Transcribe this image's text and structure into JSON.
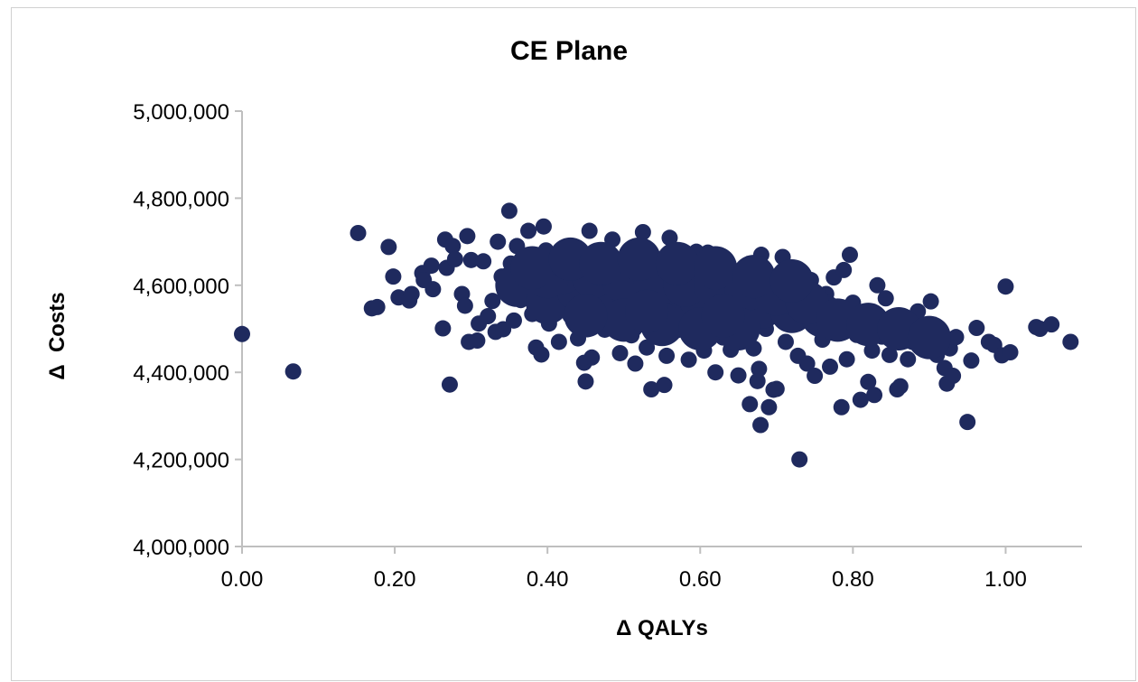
{
  "colors": {
    "marker": "#1f2a5e",
    "axis": "#bfbfbf",
    "frame": "#d0d0d0"
  },
  "chart_data": {
    "type": "scatter",
    "title": "CE Plane",
    "xlabel": "Δ QALYs",
    "ylabel": "Δ  Costs",
    "xlim": [
      0,
      1.1
    ],
    "ylim": [
      4000000,
      5000000
    ],
    "xticks": [
      "0.00",
      "0.20",
      "0.40",
      "0.60",
      "0.80",
      "1.00"
    ],
    "yticks": [
      "4,000,000",
      "4,200,000",
      "4,400,000",
      "4,600,000",
      "4,800,000",
      "5,000,000"
    ],
    "xtick_values": [
      0,
      0.2,
      0.4,
      0.6,
      0.8,
      1.0
    ],
    "ytick_values": [
      4000000,
      4200000,
      4400000,
      4600000,
      4800000,
      5000000
    ],
    "grid": false,
    "legend": "none",
    "series": [
      {
        "points": [
          [
            0.0,
            4488000
          ],
          [
            0.067,
            4402000
          ],
          [
            0.152,
            4720000
          ],
          [
            0.17,
            4547000
          ],
          [
            0.177,
            4550000
          ],
          [
            0.192,
            4688000
          ],
          [
            0.198,
            4620000
          ],
          [
            0.205,
            4572000
          ],
          [
            0.219,
            4565000
          ],
          [
            0.222,
            4580000
          ],
          [
            0.236,
            4628000
          ],
          [
            0.238,
            4612000
          ],
          [
            0.248,
            4645000
          ],
          [
            0.25,
            4591000
          ],
          [
            0.263,
            4501000
          ],
          [
            0.266,
            4705000
          ],
          [
            0.268,
            4640000
          ],
          [
            0.272,
            4372000
          ],
          [
            0.276,
            4690000
          ],
          [
            0.279,
            4660000
          ],
          [
            0.288,
            4580000
          ],
          [
            0.292,
            4553000
          ],
          [
            0.295,
            4713000
          ],
          [
            0.297,
            4470000
          ],
          [
            0.3,
            4658000
          ],
          [
            0.308,
            4473000
          ],
          [
            0.31,
            4512000
          ],
          [
            0.316,
            4655000
          ],
          [
            0.322,
            4529000
          ],
          [
            0.328,
            4564000
          ],
          [
            0.332,
            4493000
          ],
          [
            0.335,
            4700000
          ],
          [
            0.34,
            4620000
          ],
          [
            0.342,
            4499000
          ],
          [
            0.345,
            4587000
          ],
          [
            0.35,
            4771000
          ],
          [
            0.352,
            4650000
          ],
          [
            0.356,
            4519000
          ],
          [
            0.36,
            4690000
          ],
          [
            0.365,
            4566000
          ],
          [
            0.37,
            4610000
          ],
          [
            0.375,
            4725000
          ],
          [
            0.38,
            4534000
          ],
          [
            0.385,
            4457000
          ],
          [
            0.388,
            4595000
          ],
          [
            0.392,
            4441000
          ],
          [
            0.395,
            4735000
          ],
          [
            0.398,
            4680000
          ],
          [
            0.402,
            4512000
          ],
          [
            0.408,
            4625000
          ],
          [
            0.412,
            4555000
          ],
          [
            0.415,
            4470000
          ],
          [
            0.42,
            4663000
          ],
          [
            0.425,
            4592000
          ],
          [
            0.43,
            4530000
          ],
          [
            0.435,
            4682000
          ],
          [
            0.44,
            4478000
          ],
          [
            0.445,
            4540000
          ],
          [
            0.448,
            4422000
          ],
          [
            0.45,
            4379000
          ],
          [
            0.455,
            4725000
          ],
          [
            0.458,
            4434000
          ],
          [
            0.462,
            4600000
          ],
          [
            0.465,
            4552000
          ],
          [
            0.47,
            4640000
          ],
          [
            0.475,
            4498000
          ],
          [
            0.48,
            4575000
          ],
          [
            0.485,
            4705000
          ],
          [
            0.49,
            4520000
          ],
          [
            0.495,
            4444000
          ],
          [
            0.5,
            4610000
          ],
          [
            0.505,
            4562000
          ],
          [
            0.51,
            4485000
          ],
          [
            0.515,
            4420000
          ],
          [
            0.52,
            4644000
          ],
          [
            0.525,
            4722000
          ],
          [
            0.53,
            4457000
          ],
          [
            0.533,
            4600000
          ],
          [
            0.536,
            4361000
          ],
          [
            0.54,
            4530000
          ],
          [
            0.545,
            4590000
          ],
          [
            0.55,
            4479000
          ],
          [
            0.553,
            4371000
          ],
          [
            0.556,
            4438000
          ],
          [
            0.56,
            4709000
          ],
          [
            0.563,
            4640000
          ],
          [
            0.566,
            4555000
          ],
          [
            0.57,
            4497000
          ],
          [
            0.575,
            4618000
          ],
          [
            0.58,
            4525000
          ],
          [
            0.585,
            4429000
          ],
          [
            0.59,
            4580000
          ],
          [
            0.595,
            4677000
          ],
          [
            0.6,
            4519000
          ],
          [
            0.605,
            4450000
          ],
          [
            0.61,
            4675000
          ],
          [
            0.615,
            4592000
          ],
          [
            0.62,
            4400000
          ],
          [
            0.625,
            4545000
          ],
          [
            0.63,
            4480000
          ],
          [
            0.635,
            4620000
          ],
          [
            0.64,
            4452000
          ],
          [
            0.645,
            4570000
          ],
          [
            0.65,
            4393000
          ],
          [
            0.655,
            4510000
          ],
          [
            0.66,
            4640000
          ],
          [
            0.665,
            4327000
          ],
          [
            0.67,
            4455000
          ],
          [
            0.675,
            4380000
          ],
          [
            0.677,
            4408000
          ],
          [
            0.679,
            4279000
          ],
          [
            0.68,
            4670000
          ],
          [
            0.683,
            4560000
          ],
          [
            0.686,
            4500000
          ],
          [
            0.69,
            4320000
          ],
          [
            0.693,
            4615000
          ],
          [
            0.696,
            4360000
          ],
          [
            0.7,
            4362000
          ],
          [
            0.704,
            4540000
          ],
          [
            0.708,
            4665000
          ],
          [
            0.712,
            4470000
          ],
          [
            0.718,
            4586000
          ],
          [
            0.722,
            4512000
          ],
          [
            0.728,
            4438000
          ],
          [
            0.73,
            4200000
          ],
          [
            0.735,
            4595000
          ],
          [
            0.74,
            4420000
          ],
          [
            0.745,
            4612000
          ],
          [
            0.75,
            4392000
          ],
          [
            0.755,
            4530000
          ],
          [
            0.76,
            4475000
          ],
          [
            0.765,
            4580000
          ],
          [
            0.77,
            4413000
          ],
          [
            0.775,
            4618000
          ],
          [
            0.78,
            4500000
          ],
          [
            0.785,
            4320000
          ],
          [
            0.788,
            4635000
          ],
          [
            0.792,
            4430000
          ],
          [
            0.796,
            4670000
          ],
          [
            0.8,
            4560000
          ],
          [
            0.805,
            4486000
          ],
          [
            0.81,
            4337000
          ],
          [
            0.815,
            4520000
          ],
          [
            0.82,
            4378000
          ],
          [
            0.825,
            4450000
          ],
          [
            0.828,
            4348000
          ],
          [
            0.832,
            4600000
          ],
          [
            0.838,
            4482000
          ],
          [
            0.843,
            4570000
          ],
          [
            0.848,
            4440000
          ],
          [
            0.852,
            4525000
          ],
          [
            0.858,
            4361000
          ],
          [
            0.862,
            4368000
          ],
          [
            0.868,
            4505000
          ],
          [
            0.872,
            4430000
          ],
          [
            0.878,
            4470000
          ],
          [
            0.885,
            4540000
          ],
          [
            0.892,
            4455000
          ],
          [
            0.897,
            4500000
          ],
          [
            0.902,
            4563000
          ],
          [
            0.91,
            4440000
          ],
          [
            0.915,
            4495000
          ],
          [
            0.92,
            4410000
          ],
          [
            0.923,
            4374000
          ],
          [
            0.927,
            4455000
          ],
          [
            0.931,
            4392000
          ],
          [
            0.935,
            4481000
          ],
          [
            0.95,
            4286000
          ],
          [
            0.955,
            4427000
          ],
          [
            0.962,
            4502000
          ],
          [
            0.978,
            4470000
          ],
          [
            0.985,
            4463000
          ],
          [
            0.995,
            4439000
          ],
          [
            1.0,
            4597000
          ],
          [
            1.006,
            4446000
          ],
          [
            1.04,
            4504000
          ],
          [
            1.045,
            4500000
          ],
          [
            1.06,
            4510000
          ],
          [
            1.085,
            4470000
          ]
        ]
      }
    ]
  }
}
